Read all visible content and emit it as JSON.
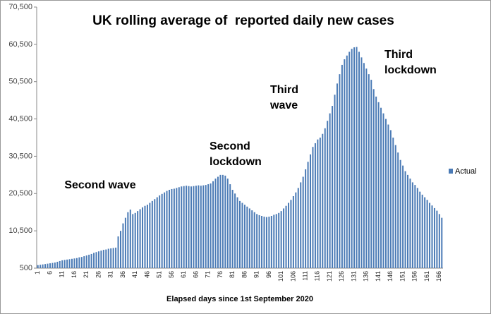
{
  "chart_data": {
    "type": "bar",
    "title": "UK rolling average of  reported daily new cases",
    "x_label": "Elapsed days since 1st September 2020",
    "annotations": [
      [
        "Second wave"
      ],
      [
        "Second",
        "lockdown"
      ],
      [
        "Third",
        "wave"
      ],
      [
        "Third",
        "lockdown"
      ]
    ],
    "categories": [
      1,
      null,
      null,
      null,
      null,
      6,
      null,
      null,
      null,
      null,
      11,
      null,
      null,
      null,
      null,
      16,
      null,
      null,
      null,
      null,
      21,
      null,
      null,
      null,
      null,
      26,
      null,
      null,
      null,
      null,
      31,
      null,
      null,
      null,
      null,
      36,
      null,
      null,
      null,
      null,
      41,
      null,
      null,
      null,
      null,
      46,
      null,
      null,
      null,
      null,
      51,
      null,
      null,
      null,
      null,
      56,
      null,
      null,
      null,
      null,
      61,
      null,
      null,
      null,
      null,
      66,
      null,
      null,
      null,
      null,
      71,
      null,
      null,
      null,
      null,
      76,
      null,
      null,
      null,
      null,
      81,
      null,
      null,
      null,
      null,
      86,
      null,
      null,
      null,
      null,
      91,
      null,
      null,
      null,
      null,
      96,
      null,
      null,
      null,
      null,
      101,
      null,
      null,
      null,
      null,
      106,
      null,
      null,
      null,
      null,
      111,
      null,
      null,
      null,
      null,
      116,
      null,
      null,
      null,
      null,
      121,
      null,
      null,
      null,
      null,
      126,
      null,
      null,
      null,
      null,
      131,
      null,
      null,
      null,
      null,
      136,
      null,
      null,
      null,
      null,
      141,
      null,
      null,
      null,
      null,
      146,
      null,
      null,
      null,
      null,
      151,
      null,
      null,
      null,
      null,
      156,
      null,
      null,
      null,
      null,
      161,
      null,
      null,
      null,
      null,
      166,
      null
    ],
    "series": [
      {
        "name": "Actual",
        "color": "#4a7ab5",
        "values": [
          1300,
          1400,
          1500,
          1600,
          1700,
          1800,
          1900,
          2000,
          2200,
          2400,
          2600,
          2700,
          2800,
          2900,
          3000,
          3100,
          3200,
          3400,
          3500,
          3700,
          3900,
          4100,
          4300,
          4600,
          4800,
          5000,
          5200,
          5400,
          5500,
          5700,
          5800,
          5900,
          6000,
          9000,
          10500,
          12500,
          14000,
          15500,
          16200,
          15000,
          15300,
          15800,
          16300,
          16800,
          17200,
          17500,
          18000,
          18500,
          19000,
          19500,
          20000,
          20400,
          20800,
          21200,
          21500,
          21700,
          21800,
          22000,
          22200,
          22400,
          22500,
          22600,
          22500,
          22400,
          22500,
          22600,
          22700,
          22600,
          22700,
          22800,
          23000,
          23200,
          23800,
          24500,
          25000,
          25500,
          25500,
          25300,
          24500,
          23000,
          21500,
          20500,
          19500,
          18500,
          18000,
          17500,
          17000,
          16500,
          16000,
          15500,
          15000,
          14700,
          14500,
          14300,
          14200,
          14300,
          14500,
          14800,
          15000,
          15300,
          15800,
          16500,
          17200,
          18000,
          18800,
          19800,
          20800,
          22000,
          23500,
          25000,
          27000,
          29000,
          31000,
          33000,
          34000,
          35000,
          35500,
          36500,
          38000,
          40000,
          42000,
          44000,
          47000,
          50000,
          52500,
          55000,
          56500,
          57500,
          58500,
          59300,
          59700,
          59800,
          58500,
          57000,
          55500,
          54000,
          52500,
          51000,
          48500,
          46500,
          45000,
          43500,
          42000,
          40500,
          39000,
          37500,
          35500,
          33500,
          31500,
          29500,
          28000,
          26500,
          25500,
          24500,
          23500,
          22800,
          22000,
          21000,
          20200,
          19500,
          18800,
          18000,
          17300,
          16600,
          15900,
          15000,
          14000
        ]
      }
    ],
    "ylim": [
      500,
      70500
    ],
    "yticks": [
      500,
      {
        "value": 10500,
        "label": "10,500"
      },
      {
        "value": 20500,
        "label": "20,500"
      },
      {
        "value": 30500,
        "label": "30,500"
      },
      {
        "value": 40500,
        "label": "40,500"
      },
      {
        "value": 50500,
        "label": "50,500"
      },
      {
        "value": 60500,
        "label": "60,500"
      },
      {
        "value": 70500,
        "label": "70,500"
      }
    ],
    "grid": false,
    "legend": "right"
  }
}
